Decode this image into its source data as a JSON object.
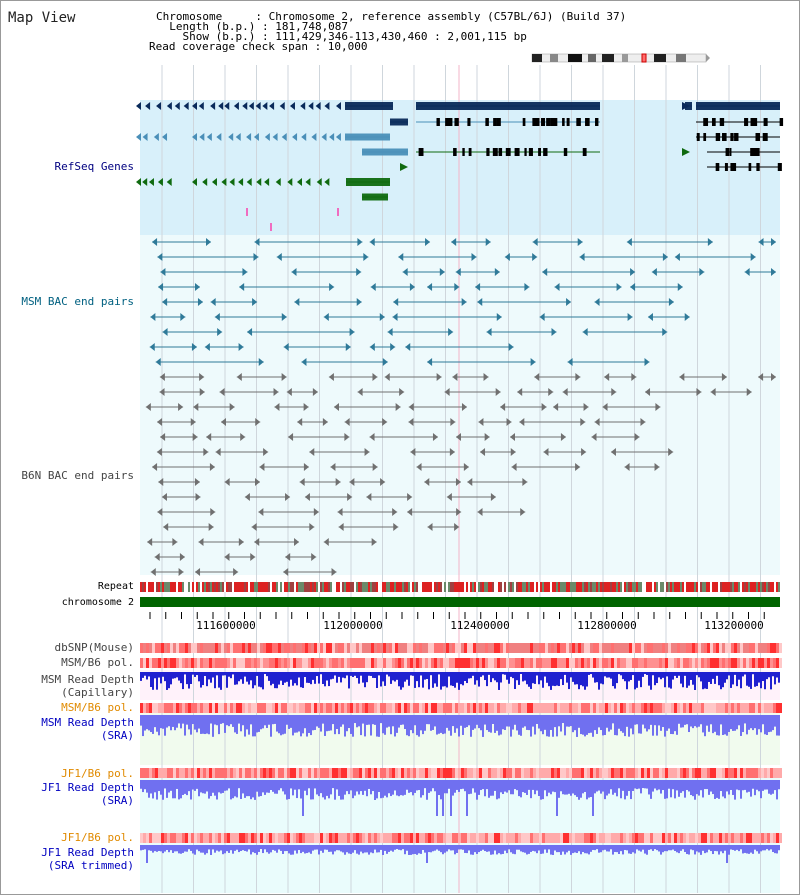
{
  "view": {
    "title": "Map View"
  },
  "info": {
    "chromosome": "Chromosome     : Chromosome 2, reference assembly (C57BL/6J) (Build 37)",
    "length": "  Length (b.p.) : 181,748,087",
    "show": "    Show (b.p.) : 111,429,346-113,430,460 : 2,001,115 bp",
    "coverage": "Read coverage check span : 10,000"
  },
  "tracks": {
    "refseq": "RefSeq Genes",
    "msm_bac": "MSM BAC end pairs",
    "b6n_bac": "B6N BAC end pairs",
    "repeat": "Repeat",
    "chromosome": "chromosome 2",
    "dbsnp": "dbSNP(Mouse)",
    "msm_b6_pol1": "MSM/B6 pol.",
    "msm_depth_cap_1": "MSM Read Depth",
    "msm_depth_cap_2": "(Capillary)",
    "msm_b6_pol2": "MSM/B6 pol.",
    "msm_depth_sra_1": "MSM Read Depth",
    "msm_depth_sra_2": "(SRA)",
    "jf1_pol1": "JF1/B6 pol.",
    "jf1_depth_sra_1": "JF1 Read Depth",
    "jf1_depth_sra_2": "(SRA)",
    "jf1_pol2": "JF1/B6 pol.",
    "jf1_depth_trim_1": "JF1 Read Depth",
    "jf1_depth_trim_2": "(SRA trimmed)"
  },
  "axis": {
    "ticks": [
      "111600000",
      "112000000",
      "112400000",
      "112800000",
      "113200000"
    ]
  },
  "colors": {
    "refseq_bg": "#d8f0fa",
    "bac_bg": "#eefafc",
    "gene_dark": "#0a2a5a",
    "gene_teal": "#4a8fb8",
    "gene_green": "#0f6a0f",
    "msm_bac": "#2f7a99",
    "b6n_bac": "#707070",
    "chromosome": "#006400",
    "snp": "#f08080",
    "depth_capillary": "#2020d0",
    "depth_sra": "#7070f0"
  }
}
